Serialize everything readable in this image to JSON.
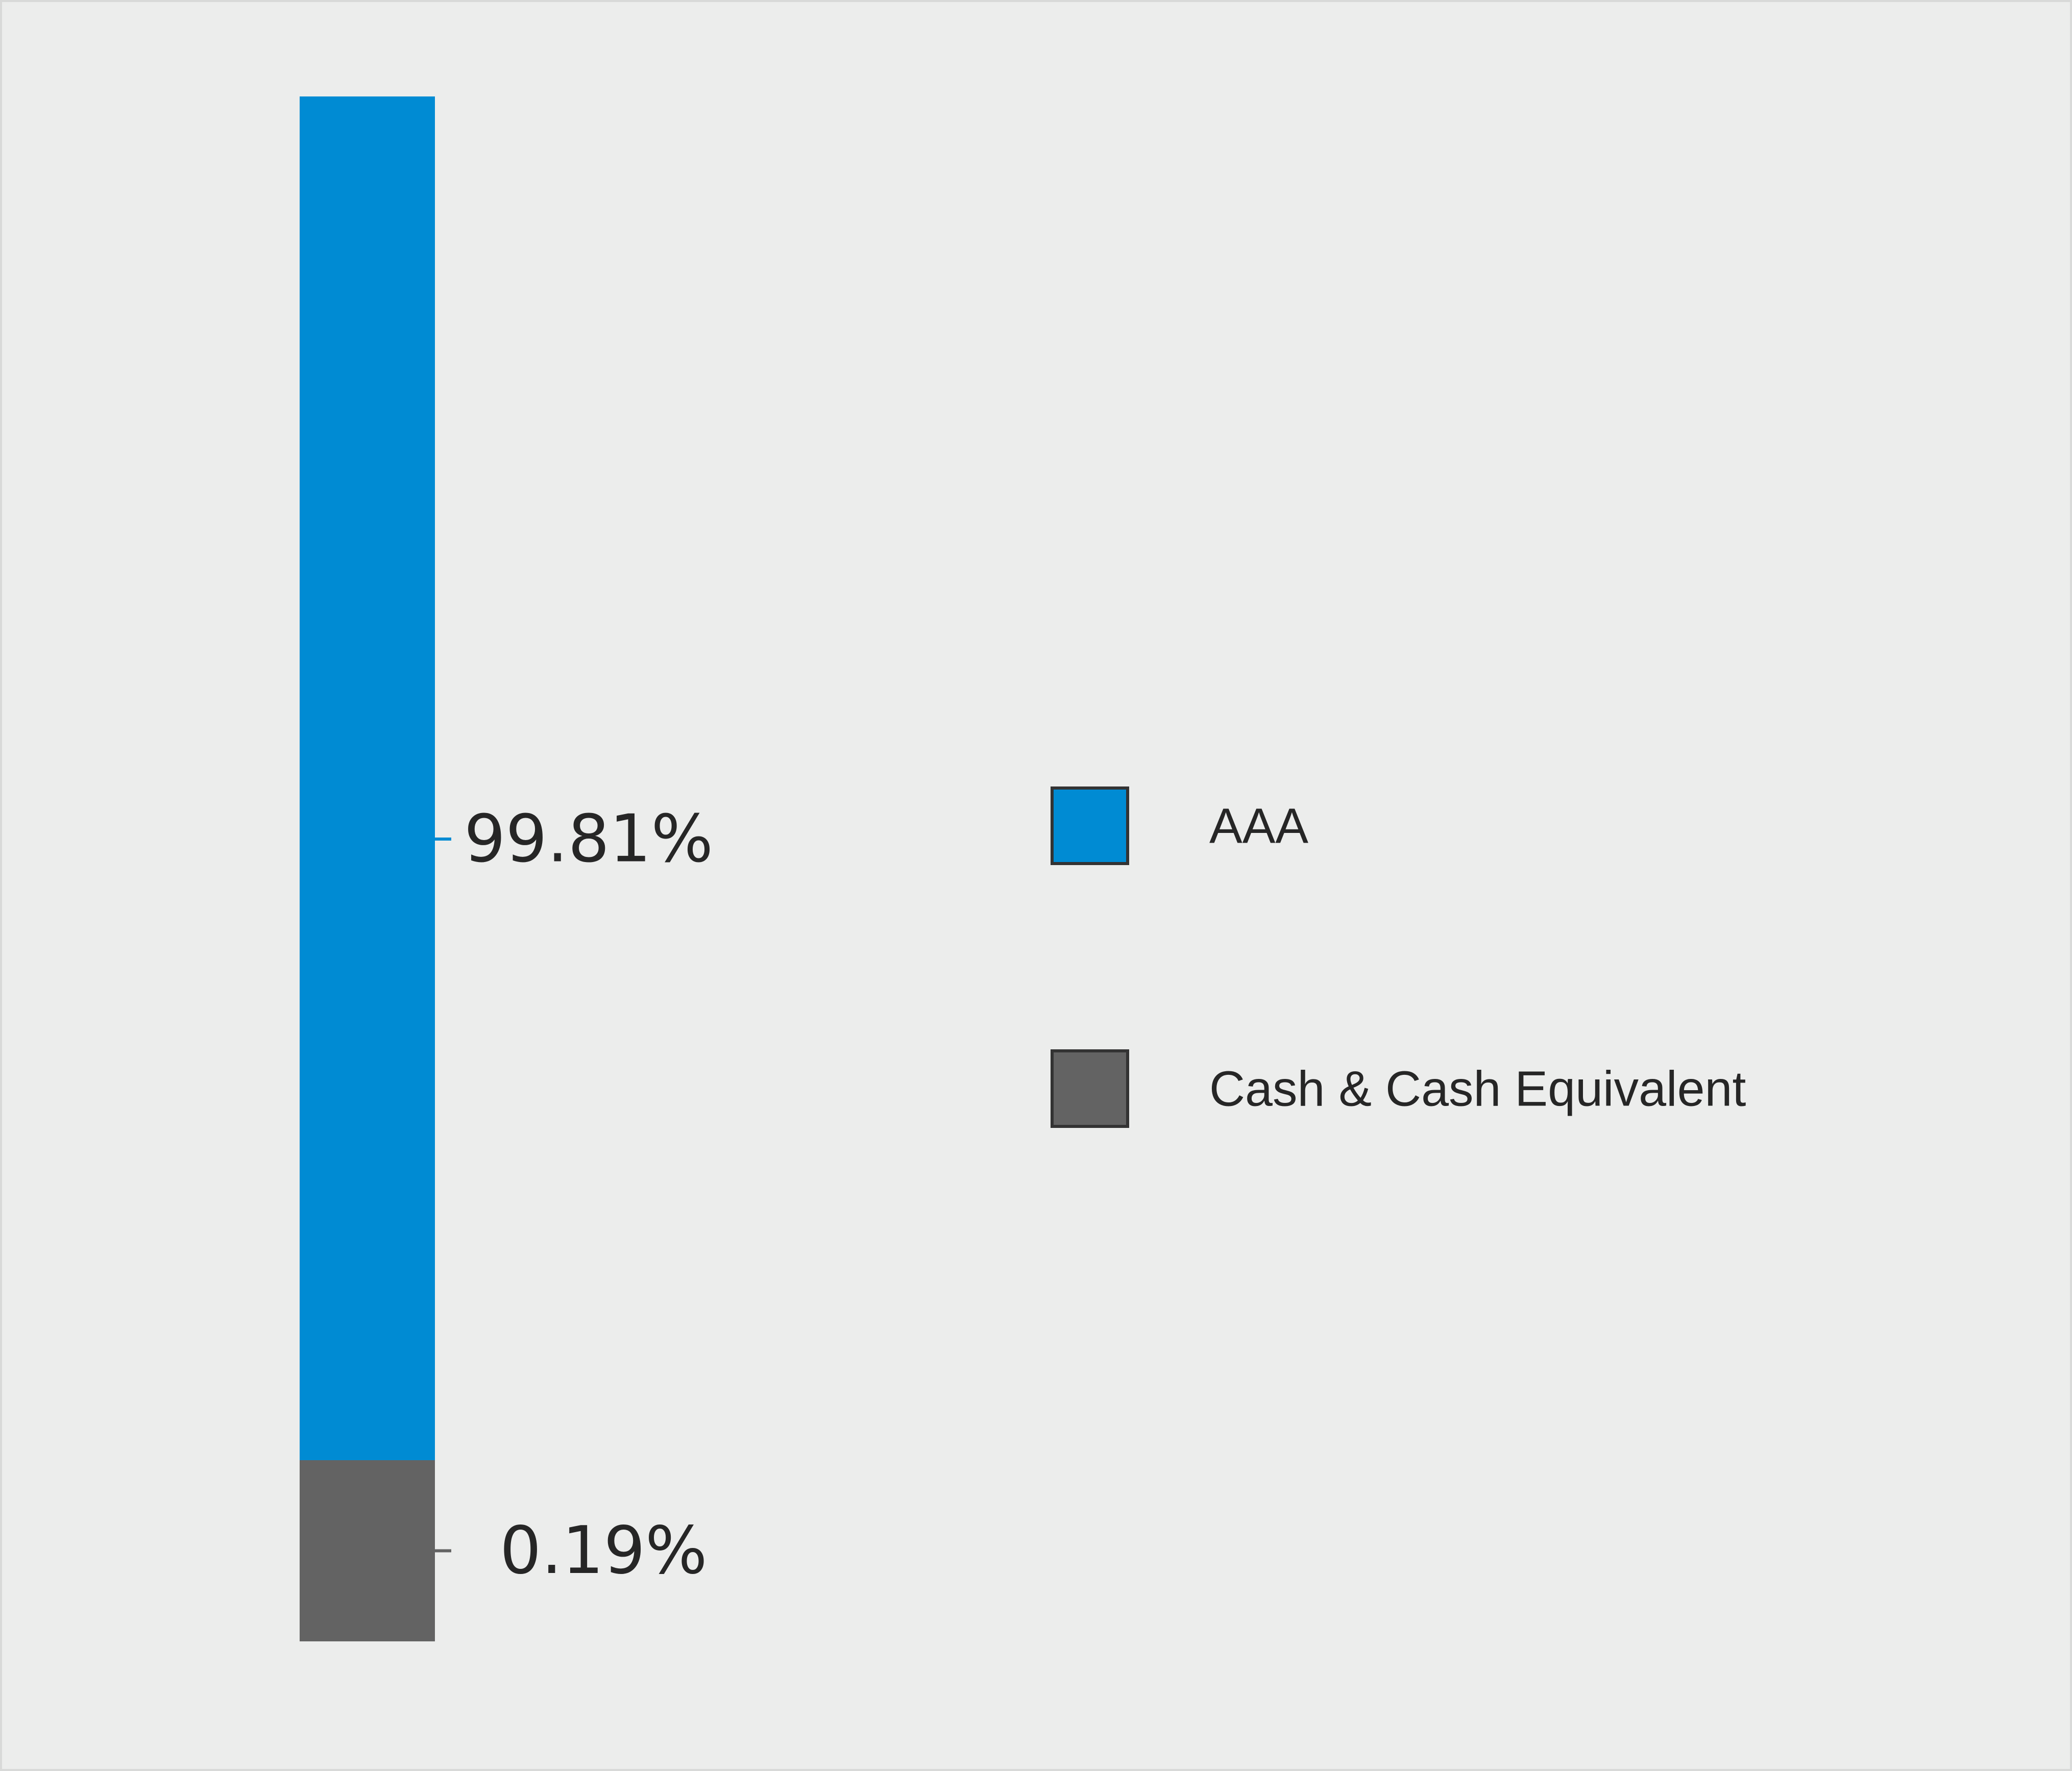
{
  "chart_data": {
    "type": "bar",
    "stacked": true,
    "orientation": "vertical",
    "series": [
      {
        "name": "AAA",
        "value": 99.81,
        "label": "99.81%",
        "color": "#008bd3"
      },
      {
        "name": "Cash & Cash Equivalent",
        "value": 0.19,
        "label": "0.19%",
        "color": "#636363"
      }
    ],
    "legend_position": "right",
    "grid": false
  }
}
